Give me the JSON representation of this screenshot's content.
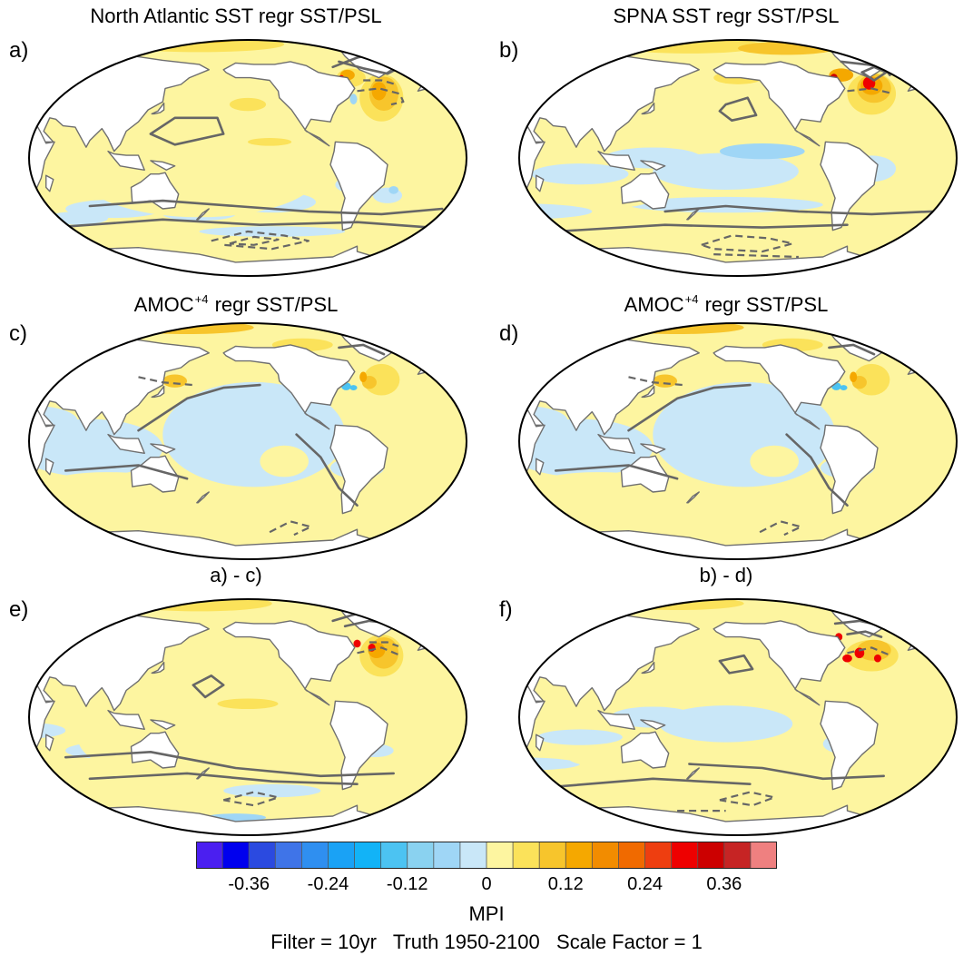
{
  "panels": [
    {
      "letter": "a)",
      "title_parts": [
        "North Atlantic SST regr SST/PSL"
      ],
      "variant": "natl"
    },
    {
      "letter": "b)",
      "title_parts": [
        "SPNA SST regr SST/PSL"
      ],
      "variant": "spna"
    },
    {
      "letter": "c)",
      "title_parts": [
        "AMOC",
        "+4",
        " regr SST/PSL"
      ],
      "variant": "amoc"
    },
    {
      "letter": "d)",
      "title_parts": [
        "AMOC",
        "+4",
        " regr SST/PSL"
      ],
      "variant": "amoc"
    },
    {
      "letter": "e)",
      "title_parts": [
        "a) - c)"
      ],
      "variant": "diffa"
    },
    {
      "letter": "f)",
      "title_parts": [
        "b) - d)"
      ],
      "variant": "diffb"
    }
  ],
  "colorbar": {
    "colors": [
      "#4b1ff0",
      "#0000ee",
      "#2b4ae0",
      "#3f74e8",
      "#2f8ff0",
      "#1aa2f5",
      "#12b3f7",
      "#4cc3f2",
      "#8ad2f0",
      "#9fd6f6",
      "#c9e7f8",
      "#fdf5a0",
      "#fbe25a",
      "#f7c52c",
      "#f5a800",
      "#f28c00",
      "#f06a00",
      "#ee3e10",
      "#ee0000",
      "#cc0000",
      "#c62424",
      "#ef8080"
    ],
    "tick_labels": [
      "-0.36",
      "-0.24",
      "-0.12",
      "0",
      "0.12",
      "0.24",
      "0.36"
    ],
    "label": "MPI"
  },
  "footer": "Filter = 10yr   Truth 1950-2100   Scale Factor = 1"
}
